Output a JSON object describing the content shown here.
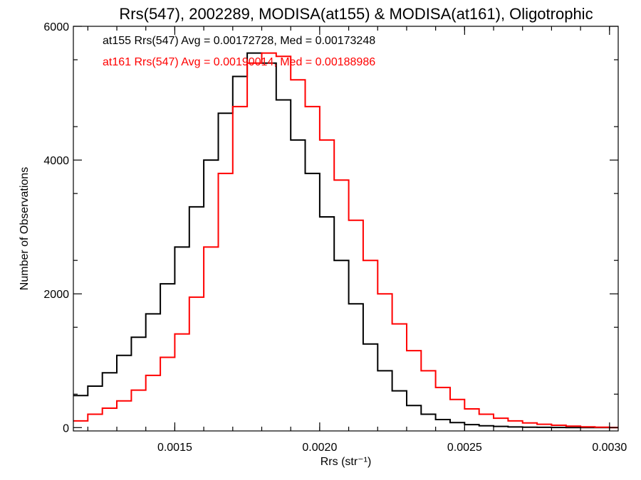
{
  "chart_data": {
    "type": "line",
    "title": "Rrs(547), 2002289, MODISA(at155) & MODISA(at161), Oligotrophic",
    "xlabel": "Rrs (str⁻¹)",
    "ylabel": "Number of Observations",
    "xlim": [
      0.00115,
      0.00303
    ],
    "ylim": [
      -50,
      6000
    ],
    "xticks": [
      {
        "value": 0.0015,
        "label": "0.0015"
      },
      {
        "value": 0.002,
        "label": "0.0020"
      },
      {
        "value": 0.0025,
        "label": "0.0025"
      },
      {
        "value": 0.003,
        "label": "0.0030"
      }
    ],
    "yticks": [
      {
        "value": 0,
        "label": "0"
      },
      {
        "value": 2000,
        "label": "2000"
      },
      {
        "value": 4000,
        "label": "4000"
      },
      {
        "value": 6000,
        "label": "6000"
      }
    ],
    "annotations": [
      {
        "text": "at155 Rrs(547) Avg = 0.00172728, Med = 0.00173248",
        "color": "#000000"
      },
      {
        "text": "at161 Rrs(547) Avg = 0.00190014, Med = 0.00188986",
        "color": "#ff0000"
      }
    ],
    "series": [
      {
        "color": "#000000",
        "x": [
          0.00115,
          0.0012,
          0.00125,
          0.0013,
          0.00135,
          0.0014,
          0.00145,
          0.0015,
          0.00155,
          0.0016,
          0.00165,
          0.0017,
          0.00175,
          0.0018,
          0.00185,
          0.0019,
          0.00195,
          0.002,
          0.00205,
          0.0021,
          0.00215,
          0.0022,
          0.00225,
          0.0023,
          0.00235,
          0.0024,
          0.00245,
          0.0025,
          0.00255,
          0.0026,
          0.00265,
          0.0027,
          0.00275,
          0.0028,
          0.00285,
          0.0029,
          0.00295,
          0.003
        ],
        "y": [
          480,
          620,
          820,
          1080,
          1350,
          1700,
          2150,
          2700,
          3300,
          4000,
          4700,
          5250,
          5600,
          5450,
          4900,
          4300,
          3800,
          3150,
          2500,
          1850,
          1250,
          850,
          550,
          330,
          200,
          120,
          75,
          45,
          28,
          18,
          10,
          6,
          4,
          2,
          1,
          0,
          0,
          0
        ]
      },
      {
        "color": "#ff0000",
        "x": [
          0.00115,
          0.0012,
          0.00125,
          0.0013,
          0.00135,
          0.0014,
          0.00145,
          0.0015,
          0.00155,
          0.0016,
          0.00165,
          0.0017,
          0.00175,
          0.0018,
          0.00185,
          0.0019,
          0.00195,
          0.002,
          0.00205,
          0.0021,
          0.00215,
          0.0022,
          0.00225,
          0.0023,
          0.00235,
          0.0024,
          0.00245,
          0.0025,
          0.00255,
          0.0026,
          0.00265,
          0.0027,
          0.00275,
          0.0028,
          0.00285,
          0.0029,
          0.00295,
          0.003
        ],
        "y": [
          100,
          200,
          290,
          400,
          560,
          780,
          1050,
          1400,
          1950,
          2700,
          3800,
          4800,
          5450,
          5600,
          5550,
          5200,
          4800,
          4300,
          3700,
          3100,
          2500,
          2000,
          1550,
          1150,
          850,
          600,
          420,
          280,
          200,
          140,
          100,
          70,
          50,
          35,
          22,
          12,
          5,
          0
        ]
      }
    ]
  }
}
